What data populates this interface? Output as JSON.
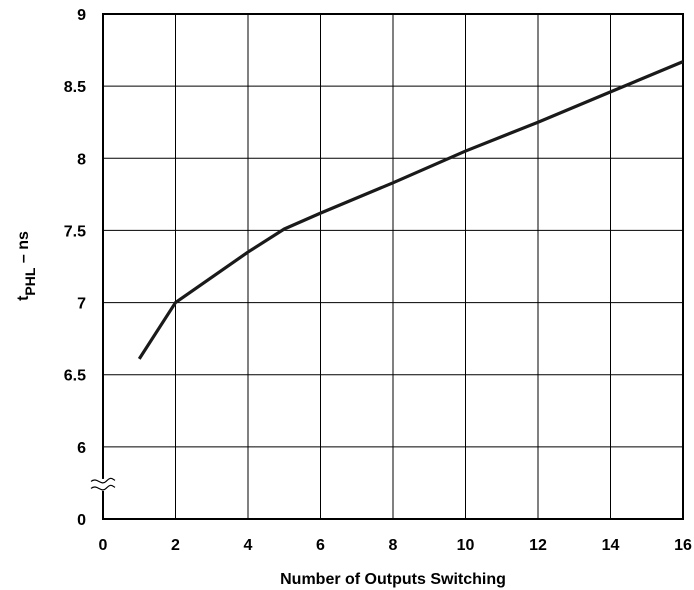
{
  "chart_data": {
    "type": "line",
    "xlabel": "Number of Outputs Switching",
    "ylabel_main": "t",
    "ylabel_sub": "PHL",
    "ylabel_suffix": " – ns",
    "xlim": [
      0,
      16
    ],
    "x_ticks": [
      "0",
      "2",
      "4",
      "6",
      "8",
      "10",
      "12",
      "14",
      "16"
    ],
    "y_ticks_upper": [
      "6",
      "6.5",
      "7",
      "7.5",
      "8",
      "8.5",
      "9"
    ],
    "y_tick_zero": "0",
    "y_axis_break": true,
    "grid": true,
    "series": [
      {
        "x": [
          1,
          2,
          4,
          5,
          6,
          8,
          10,
          12,
          14,
          16
        ],
        "y": [
          6.61,
          7.0,
          7.35,
          7.51,
          7.62,
          7.83,
          8.05,
          8.25,
          8.46,
          8.67
        ]
      }
    ]
  }
}
